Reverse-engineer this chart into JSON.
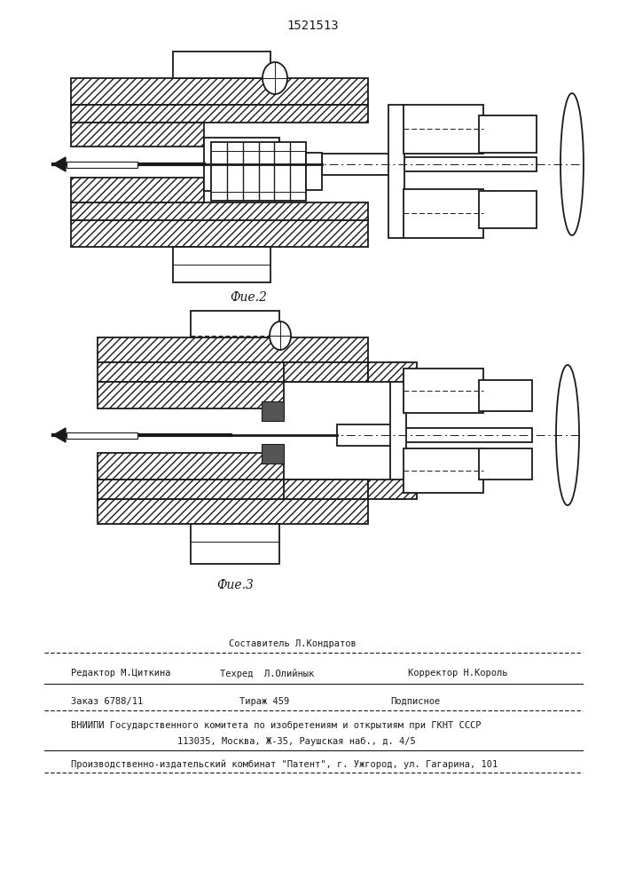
{
  "title": "1521513",
  "fig2_label": "Фие.2",
  "fig3_label": "Фие.3",
  "footer_sestavitel": "Составитель Л.Кондратов",
  "footer_editor": "Редактор М.Циткина",
  "footer_tehred": "Техред  Л.Олийнык",
  "footer_correktor": "Корректор Н.Король",
  "footer_zakaz": "Заказ 6788/11",
  "footer_tirazh": "Тираж 459",
  "footer_podpisnoe": "Подписное",
  "footer_vniip1": "ВНИИПИ Государственного комитета по изобретениям и открытиям при ГКНТ СССР",
  "footer_vniip2": "113035, Москва, Ж-35, Раушская наб., д. 4/5",
  "footer_proizv": "Производственно-издательский комбинат \"Патент\", г. Ужгород, ул. Гагарина, 101",
  "bg_color": "#ffffff",
  "line_color": "#1a1a1a"
}
